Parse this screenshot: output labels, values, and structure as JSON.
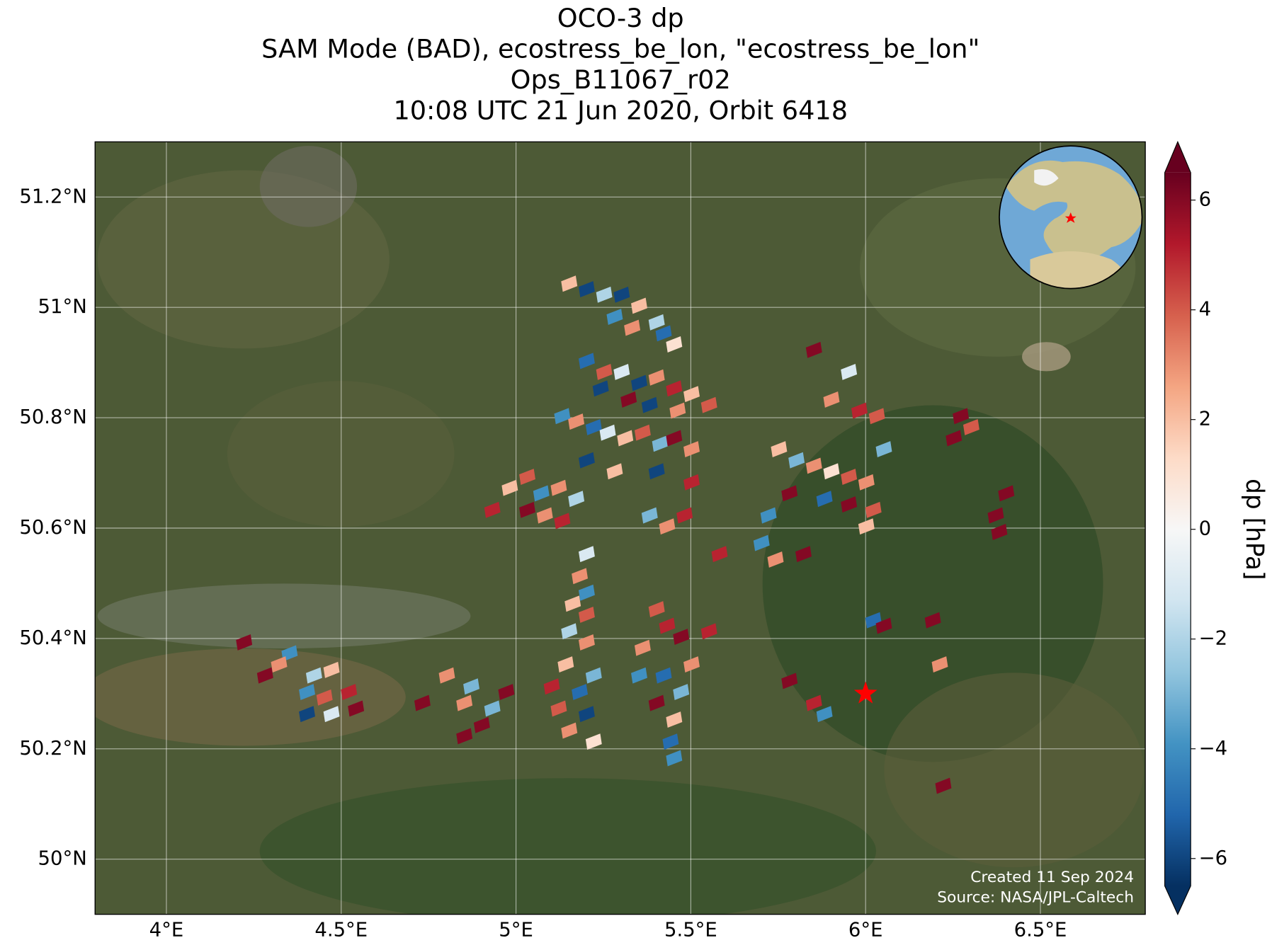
{
  "chart_data": {
    "type": "map",
    "title": [
      "OCO-3 dp",
      "SAM Mode (BAD), ecostress_be_lon, \"ecostress_be_lon\"",
      "Ops_B11067_r02",
      "10:08 UTC 21 Jun 2020, Orbit 6418"
    ],
    "xlim": [
      3.796,
      6.8
    ],
    "ylim": [
      49.9,
      51.3
    ],
    "xticks": [
      {
        "value": 4,
        "label": "4°E"
      },
      {
        "value": 4.5,
        "label": "4.5°E"
      },
      {
        "value": 5,
        "label": "5°E"
      },
      {
        "value": 5.5,
        "label": "5.5°E"
      },
      {
        "value": 6,
        "label": "6°E"
      },
      {
        "value": 6.5,
        "label": "6.5°E"
      }
    ],
    "yticks": [
      {
        "value": 50,
        "label": "50°N"
      },
      {
        "value": 50.2,
        "label": "50.2°N"
      },
      {
        "value": 50.4,
        "label": "50.4°N"
      },
      {
        "value": 50.6,
        "label": "50.6°N"
      },
      {
        "value": 50.8,
        "label": "50.8°N"
      },
      {
        "value": 51,
        "label": "51°N"
      },
      {
        "value": 51.2,
        "label": "51.2°N"
      }
    ],
    "grid": true,
    "colorbar": {
      "label": "dp [hPa]",
      "clim": [
        -6.5,
        6.5
      ],
      "extend": "both",
      "colormap": [
        "#053061",
        "#2166ac",
        "#4393c3",
        "#92c5de",
        "#d1e5f0",
        "#f7f7f7",
        "#fddbc7",
        "#f4a582",
        "#d6604d",
        "#b2182b",
        "#67001f"
      ],
      "ticks": [
        {
          "value": -6,
          "label": "−6"
        },
        {
          "value": -4,
          "label": "−4"
        },
        {
          "value": -2,
          "label": "−2"
        },
        0,
        2,
        4,
        6
      ]
    },
    "target": {
      "lon": 6.0,
      "lat": 50.3,
      "color": "#ff0000"
    },
    "soundings": {
      "lon": [
        5.15,
        5.2,
        5.25,
        5.3,
        5.35,
        5.28,
        5.33,
        5.4,
        5.45,
        5.42,
        5.2,
        5.25,
        5.3,
        5.35,
        5.4,
        5.45,
        5.5,
        5.24,
        5.32,
        5.38,
        5.46,
        5.55,
        5.13,
        5.17,
        5.22,
        5.26,
        5.31,
        5.36,
        5.41,
        5.45,
        5.5,
        5.2,
        5.28,
        5.4,
        5.5,
        5.85,
        5.95,
        5.9,
        5.98,
        6.03,
        6.05,
        5.75,
        5.8,
        5.85,
        5.9,
        5.95,
        6.0,
        5.78,
        5.88,
        5.95,
        6.02,
        5.72,
        6.0,
        4.98,
        5.03,
        5.07,
        5.12,
        5.17,
        5.03,
        5.08,
        5.13,
        4.93,
        5.38,
        5.43,
        5.48,
        5.58,
        5.7,
        5.74,
        5.82,
        5.2,
        5.18,
        5.2,
        5.16,
        5.2,
        5.15,
        5.2,
        5.14,
        5.22,
        5.1,
        5.18,
        5.12,
        5.2,
        5.15,
        5.22,
        5.4,
        5.43,
        5.36,
        5.47,
        5.35,
        5.42,
        5.5,
        5.47,
        5.4,
        5.45,
        5.44,
        5.45,
        5.55,
        4.22,
        4.28,
        4.35,
        4.32,
        4.42,
        4.47,
        4.4,
        4.45,
        4.52,
        4.4,
        4.47,
        4.54,
        4.73,
        4.8,
        4.87,
        4.85,
        4.93,
        4.9,
        4.97,
        4.85,
        5.78,
        5.85,
        5.88,
        6.02,
        6.05,
        6.19,
        6.21,
        6.22,
        6.27,
        6.3,
        6.25,
        6.4,
        6.37,
        6.38
      ],
      "lat": [
        51.04,
        51.03,
        51.02,
        51.02,
        51.0,
        50.98,
        50.96,
        50.97,
        50.93,
        50.95,
        50.9,
        50.88,
        50.88,
        50.86,
        50.87,
        50.85,
        50.84,
        50.85,
        50.83,
        50.82,
        50.81,
        50.82,
        50.8,
        50.79,
        50.78,
        50.77,
        50.76,
        50.77,
        50.75,
        50.76,
        50.74,
        50.72,
        50.7,
        50.7,
        50.68,
        50.92,
        50.88,
        50.83,
        50.81,
        50.8,
        50.74,
        50.74,
        50.72,
        50.71,
        50.7,
        50.69,
        50.68,
        50.66,
        50.65,
        50.64,
        50.63,
        50.62,
        50.6,
        50.67,
        50.69,
        50.66,
        50.67,
        50.65,
        50.63,
        50.62,
        50.61,
        50.63,
        50.62,
        50.6,
        50.62,
        50.55,
        50.57,
        50.54,
        50.55,
        50.55,
        50.51,
        50.48,
        50.46,
        50.44,
        50.41,
        50.39,
        50.35,
        50.33,
        50.31,
        50.3,
        50.27,
        50.26,
        50.23,
        50.21,
        50.45,
        50.42,
        50.38,
        50.4,
        50.33,
        50.33,
        50.35,
        50.3,
        50.28,
        50.25,
        50.21,
        50.18,
        50.41,
        50.39,
        50.33,
        50.37,
        50.35,
        50.33,
        50.34,
        50.3,
        50.29,
        50.3,
        50.26,
        50.26,
        50.27,
        50.28,
        50.33,
        50.31,
        50.28,
        50.27,
        50.24,
        50.3,
        50.22,
        50.32,
        50.28,
        50.26,
        50.43,
        50.42,
        50.43,
        50.35,
        50.13,
        50.8,
        50.78,
        50.76,
        50.66,
        50.62,
        50.59
      ],
      "dp": [
        2,
        -6,
        -2,
        -6,
        2,
        -4,
        3,
        -2,
        1,
        -5,
        -5,
        4,
        -1,
        -6,
        3,
        5,
        2,
        -6,
        6,
        -6,
        3,
        4,
        -4,
        3,
        -5,
        -1,
        2,
        4,
        -3,
        6,
        3,
        -6,
        2,
        -6,
        5,
        6,
        -1,
        3,
        5,
        4,
        -3,
        2,
        -3,
        3,
        1,
        4,
        3,
        6,
        -5,
        6,
        4,
        -4,
        2,
        2,
        4,
        -4,
        3,
        -2,
        6,
        3,
        5,
        5,
        -3,
        3,
        5,
        5,
        -4,
        3,
        6,
        -1,
        3,
        -4,
        2,
        4,
        -2,
        3,
        2,
        -3,
        5,
        -5,
        4,
        -6,
        3,
        1,
        4,
        5,
        3,
        6,
        -4,
        -5,
        3,
        -3,
        6,
        2,
        -5,
        -4,
        5,
        6,
        6,
        -4,
        3,
        -2,
        2,
        -4,
        4,
        5,
        -6,
        -1,
        6,
        6,
        3,
        -3,
        3,
        -3,
        6,
        6,
        6,
        6,
        5,
        -4,
        -5,
        6,
        6,
        3,
        6,
        6,
        4,
        6,
        6,
        6,
        6
      ]
    },
    "footer": [
      "Created 11 Sep 2024",
      "Source: NASA/JPL-Caltech"
    ]
  }
}
